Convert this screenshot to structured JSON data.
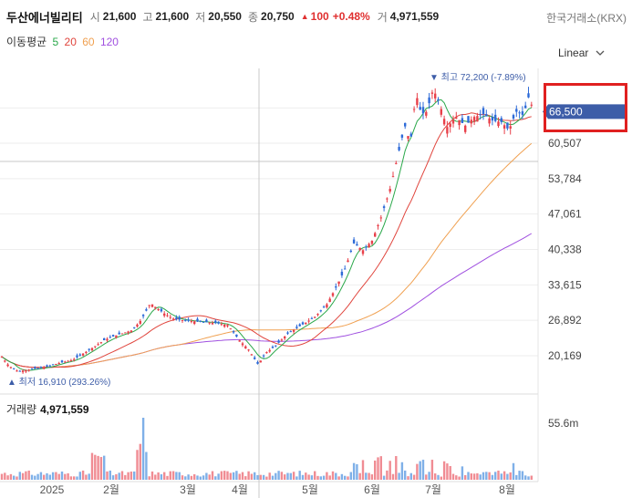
{
  "header": {
    "stock_name": "두산에너빌리티",
    "open_label": "시",
    "open": "21,600",
    "high_label": "고",
    "high": "21,600",
    "low_label": "저",
    "low": "20,550",
    "close_label": "종",
    "close": "20,750",
    "change_arrow": "▲",
    "change": "100",
    "change_pct": "+0.48%",
    "volume_label": "거",
    "volume": "4,971,559",
    "exchange": "한국거래소(KRX)"
  },
  "ma_legend": {
    "label": "이동평균",
    "periods": [
      {
        "text": "5",
        "color": "#2aa84a"
      },
      {
        "text": "20",
        "color": "#e0443c"
      },
      {
        "text": "60",
        "color": "#f0a050"
      },
      {
        "text": "120",
        "color": "#a050e0"
      }
    ]
  },
  "scale_mode": "Linear",
  "colors": {
    "up": "#e8404a",
    "down": "#2e6bd8",
    "price_tag": "#3d5da8",
    "highlight_box": "#e02020"
  },
  "volume_panel": {
    "label": "거래량",
    "value": "4,971,559",
    "axis_label": "55.6m"
  },
  "chart_data": {
    "type": "candlestick",
    "y_ticks": [
      "60,507",
      "53,784",
      "47,061",
      "40,338",
      "33,615",
      "26,892",
      "20,169"
    ],
    "y_tick_values": [
      60507,
      53784,
      47061,
      40338,
      33615,
      26892,
      20169
    ],
    "x_ticks": [
      "2025",
      "2월",
      "3월",
      "4월",
      "5월",
      "6월",
      "7월",
      "8월"
    ],
    "current_price": "66,500",
    "current_price_value": 66500,
    "max_annotation": {
      "arrow": "▼",
      "text": "최고 72,200 (-7.89%)",
      "value": 72200
    },
    "min_annotation": {
      "arrow": "▲",
      "text": "최저 16,910 (293.26%)",
      "value": 16910
    },
    "volume_max": "55.6m"
  }
}
